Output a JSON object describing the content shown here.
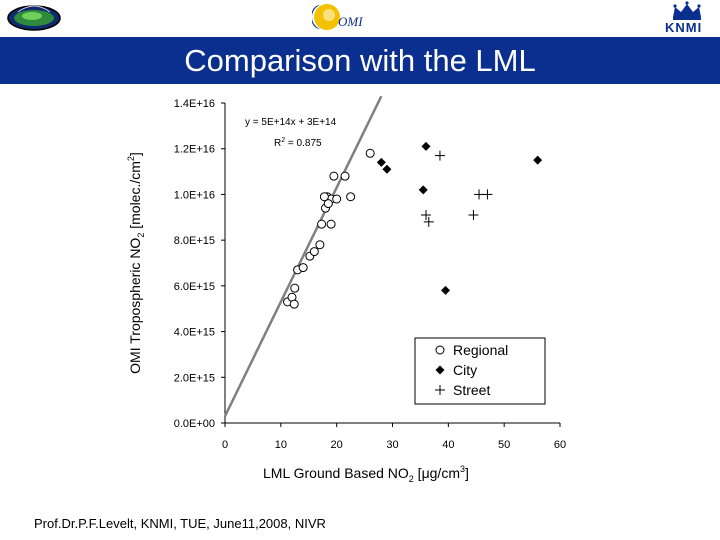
{
  "header": {
    "title": "Comparison with the LML",
    "omi_logo_text": "OMI",
    "knmi_logo_text": "KNMI",
    "colors": {
      "title_bar": "#0b2f8f",
      "title_text": "#ffffff"
    },
    "icons": [
      "earth-satellite-logo-icon",
      "omi-logo-icon",
      "knmi-crown-logo-icon"
    ]
  },
  "footer": {
    "text": "Prof.Dr.P.F.Levelt, KNMI, TUE, June11,2008, NIVR"
  },
  "chart_data": {
    "type": "scatter",
    "xlabel": "LML Ground Based NO",
    "xlabel_sub": "2",
    "xlabel_unit": "[μg/cm",
    "xlabel_unit_sup": "3",
    "xlabel_unit_end": "]",
    "ylabel": "OMI Tropospheric NO",
    "ylabel_sub": "2",
    "ylabel_unit": " [molec./cm",
    "ylabel_unit_sup": "2",
    "ylabel_unit_end": "]",
    "xlim": [
      0,
      60
    ],
    "ylim": [
      0,
      1.4e+16
    ],
    "x_ticks": [
      0,
      10,
      20,
      30,
      40,
      50,
      60
    ],
    "x_tick_labels": [
      "0",
      "10",
      "20",
      "30",
      "40",
      "50",
      "60"
    ],
    "y_ticks": [
      0,
      2000000000000000.0,
      4000000000000000.0,
      6000000000000000.0,
      8000000000000000.0,
      1e+16,
      1.2e+16,
      1.4e+16
    ],
    "y_tick_labels": [
      "0.0E+00",
      "2.0E+15",
      "4.0E+15",
      "6.0E+15",
      "8.0E+15",
      "1.0E+16",
      "1.2E+16",
      "1.4E+16"
    ],
    "grid": false,
    "legend_position": "bottom-right",
    "annotations": {
      "equation": "y = 5E+14x + 3E+14",
      "r2_label": "R",
      "r2_sup": "2",
      "r2_value": " = 0.875"
    },
    "fit_line": {
      "slope": 500000000000000.0,
      "intercept": 300000000000000.0,
      "x_range": [
        0,
        28
      ],
      "color": "#808080"
    },
    "series": [
      {
        "name": "Regional",
        "marker": "circle",
        "points": [
          [
            11.2,
            5300000000000000.0
          ],
          [
            12.0,
            5500000000000000.0
          ],
          [
            12.5,
            5900000000000000.0
          ],
          [
            12.4,
            5200000000000000.0
          ],
          [
            13.0,
            6700000000000000.0
          ],
          [
            14.0,
            6800000000000000.0
          ],
          [
            15.2,
            7300000000000000.0
          ],
          [
            16.0,
            7500000000000000.0
          ],
          [
            17.0,
            7800000000000000.0
          ],
          [
            17.3,
            8700000000000000.0
          ],
          [
            18.0,
            9400000000000000.0
          ],
          [
            18.3,
            9900000000000000.0
          ],
          [
            19.0,
            9800000000000000.0
          ],
          [
            20.0,
            9800000000000000.0
          ],
          [
            19.5,
            1.08e+16
          ],
          [
            21.5,
            1.08e+16
          ],
          [
            22.5,
            9900000000000000.0
          ],
          [
            26.0,
            1.18e+16
          ],
          [
            18.5,
            9600000000000000.0
          ],
          [
            19.0,
            8700000000000000.0
          ],
          [
            17.8,
            9900000000000000.0
          ]
        ]
      },
      {
        "name": "City",
        "marker": "diamond",
        "points": [
          [
            28.0,
            1.14e+16
          ],
          [
            29.0,
            1.11e+16
          ],
          [
            36.0,
            1.21e+16
          ],
          [
            35.5,
            1.02e+16
          ],
          [
            39.5,
            5800000000000000.0
          ],
          [
            56.0,
            1.15e+16
          ]
        ]
      },
      {
        "name": "Street",
        "marker": "plus",
        "points": [
          [
            38.5,
            1.17e+16
          ],
          [
            36.0,
            9100000000000000.0
          ],
          [
            36.5,
            8800000000000000.0
          ],
          [
            44.5,
            9100000000000000.0
          ],
          [
            45.5,
            1e+16
          ],
          [
            47.0,
            1e+16
          ]
        ]
      }
    ],
    "colors": {
      "points": "#000000",
      "axes": "#000000"
    }
  }
}
